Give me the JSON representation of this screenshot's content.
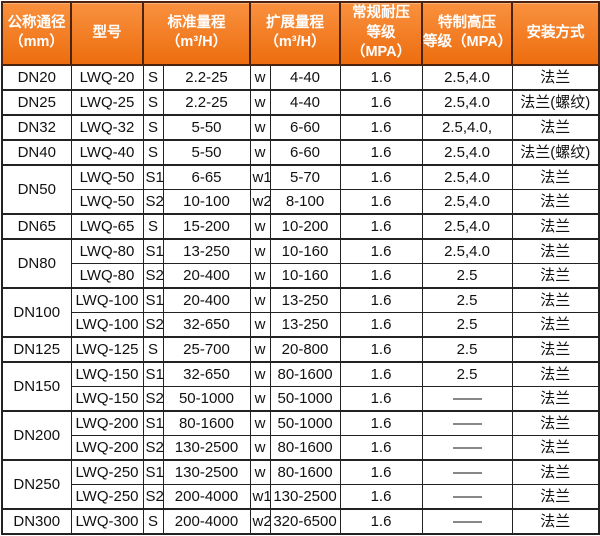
{
  "colors": {
    "header_orange_top": "#f9913f",
    "header_orange_bottom": "#ed6d0e",
    "header_border": "#4a2410",
    "header_text": "#ffffff",
    "body_border": "#222222",
    "body_text": "#111111",
    "body_bg": "#ffffff"
  },
  "table": {
    "headers": {
      "diameter_line1": "公称通径",
      "diameter_line2": "（mm）",
      "model": "型号",
      "std_line1": "标准量程",
      "std_line2": "（m³/H）",
      "ext_line1": "扩展量程",
      "ext_line2": "（m³/H）",
      "regular_line1": "常规耐压",
      "regular_line2": "等级（MPA）",
      "special_line1": "特制高压",
      "special_line2": "等级（MPA）",
      "install": "安装方式"
    },
    "rows": [
      {
        "dn": "DN20",
        "dn_rowspan": 1,
        "model": "LWQ-20",
        "std_label": "S",
        "std_range": "2.2-25",
        "ext_label": "w",
        "ext_range": "4-40",
        "regular": "1.6",
        "special": "2.5,4.0",
        "install": "法兰"
      },
      {
        "dn": "DN25",
        "dn_rowspan": 1,
        "model": "LWQ-25",
        "std_label": "S",
        "std_range": "2.2-25",
        "ext_label": "w",
        "ext_range": "4-40",
        "regular": "1.6",
        "special": "2.5,4.0",
        "install": "法兰(螺纹)"
      },
      {
        "dn": "DN32",
        "dn_rowspan": 1,
        "model": "LWQ-32",
        "std_label": "S",
        "std_range": "5-50",
        "ext_label": "w",
        "ext_range": "6-60",
        "regular": "1.6",
        "special": "2.5,4.0,",
        "install": "法兰"
      },
      {
        "dn": "DN40",
        "dn_rowspan": 1,
        "model": "LWQ-40",
        "std_label": "S",
        "std_range": "5-50",
        "ext_label": "w",
        "ext_range": "6-60",
        "regular": "1.6",
        "special": "2.5,4.0",
        "install": "法兰(螺纹)"
      },
      {
        "dn": "DN50",
        "dn_rowspan": 2,
        "model": "LWQ-50",
        "std_label": "S1",
        "std_range": "6-65",
        "ext_label": "w1",
        "ext_range": "5-70",
        "regular": "1.6",
        "special": "2.5,4.0",
        "install": "法兰"
      },
      {
        "dn": null,
        "model": "LWQ-50",
        "std_label": "S2",
        "std_range": "10-100",
        "ext_label": "w2",
        "ext_range": "8-100",
        "regular": "1.6",
        "special": "2.5,4.0",
        "install": "法兰"
      },
      {
        "dn": "DN65",
        "dn_rowspan": 1,
        "model": "LWQ-65",
        "std_label": "S",
        "std_range": "15-200",
        "ext_label": "w",
        "ext_range": "10-200",
        "regular": "1.6",
        "special": "2.5,4.0",
        "install": "法兰"
      },
      {
        "dn": "DN80",
        "dn_rowspan": 2,
        "model": "LWQ-80",
        "std_label": "S1",
        "std_range": "13-250",
        "ext_label": "w",
        "ext_range": "10-160",
        "regular": "1.6",
        "special": "2.5,4.0",
        "install": "法兰"
      },
      {
        "dn": null,
        "model": "LWQ-80",
        "std_label": "S2",
        "std_range": "20-400",
        "ext_label": "w",
        "ext_range": "10-160",
        "regular": "1.6",
        "special": "2.5",
        "install": "法兰"
      },
      {
        "dn": "DN100",
        "dn_rowspan": 2,
        "model": "LWQ-100",
        "std_label": "S1",
        "std_range": "20-400",
        "ext_label": "w",
        "ext_range": "13-250",
        "regular": "1.6",
        "special": "2.5",
        "install": "法兰"
      },
      {
        "dn": null,
        "model": "LWQ-100",
        "std_label": "S2",
        "std_range": "32-650",
        "ext_label": "w",
        "ext_range": "13-250",
        "regular": "1.6",
        "special": "2.5",
        "install": "法兰"
      },
      {
        "dn": "DN125",
        "dn_rowspan": 1,
        "model": "LWQ-125",
        "std_label": "S",
        "std_range": "25-700",
        "ext_label": "w",
        "ext_range": "20-800",
        "regular": "1.6",
        "special": "2.5",
        "install": "法兰"
      },
      {
        "dn": "DN150",
        "dn_rowspan": 2,
        "model": "LWQ-150",
        "std_label": "S1",
        "std_range": "32-650",
        "ext_label": "w",
        "ext_range": "80-1600",
        "regular": "1.6",
        "special": "2.5",
        "install": "法兰"
      },
      {
        "dn": null,
        "model": "LWQ-150",
        "std_label": "S2",
        "std_range": "50-1000",
        "ext_label": "w",
        "ext_range": "50-1000",
        "regular": "1.6",
        "special": "——",
        "install": "法兰"
      },
      {
        "dn": "DN200",
        "dn_rowspan": 2,
        "model": "LWQ-200",
        "std_label": "S1",
        "std_range": "80-1600",
        "ext_label": "w",
        "ext_range": "50-1000",
        "regular": "1.6",
        "special": "——",
        "install": "法兰"
      },
      {
        "dn": null,
        "model": "LWQ-200",
        "std_label": "S2",
        "std_range": "130-2500",
        "ext_label": "w",
        "ext_range": "80-1600",
        "regular": "1.6",
        "special": "——",
        "install": "法兰"
      },
      {
        "dn": "DN250",
        "dn_rowspan": 2,
        "model": "LWQ-250",
        "std_label": "S1",
        "std_range": "130-2500",
        "ext_label": "w",
        "ext_range": "80-1600",
        "regular": "1.6",
        "special": "——",
        "install": "法兰"
      },
      {
        "dn": null,
        "model": "LWQ-250",
        "std_label": "S2",
        "std_range": "200-4000",
        "ext_label": "w1",
        "ext_range": "130-2500",
        "regular": "1.6",
        "special": "——",
        "install": "法兰"
      },
      {
        "dn": "DN300",
        "dn_rowspan": 1,
        "model": "LWQ-300",
        "std_label": "S",
        "std_range": "200-4000",
        "ext_label": "w2",
        "ext_range": "320-6500",
        "regular": "1.6",
        "special": "——",
        "install": "法兰"
      }
    ]
  }
}
